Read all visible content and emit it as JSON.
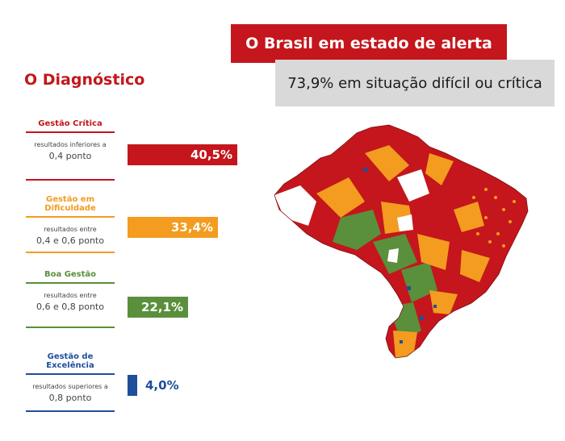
{
  "header": {
    "title": "O Brasil em estado de alerta",
    "subtitle": "73,9% em situação difícil ou crítica"
  },
  "diagnostic": {
    "heading": "O Diagnóstico",
    "categories": [
      {
        "name": "Gestão Crítica",
        "desc_small": "resultados inferiores a",
        "desc_big": "0,4 ponto",
        "value_label": "40,5%",
        "value": 40.5,
        "color": "#c4161c"
      },
      {
        "name": "Gestão em Dificuldade",
        "desc_small": "resultados entre",
        "desc_big": "0,4 e 0,6 ponto",
        "value_label": "33,4%",
        "value": 33.4,
        "color": "#f39c1f"
      },
      {
        "name": "Boa Gestão",
        "desc_small": "resultados entre",
        "desc_big": "0,6 e 0,8 ponto",
        "value_label": "22,1%",
        "value": 22.1,
        "color": "#5a8f3c"
      },
      {
        "name": "Gestão de Excelência",
        "desc_small": "resultados superiores a",
        "desc_big": "0,8 ponto",
        "value_label": "4,0%",
        "value": 4.0,
        "color": "#1f4e9c"
      }
    ]
  },
  "map": {
    "colors": {
      "critica": "#c4161c",
      "dificuldade": "#f39c1f",
      "boa": "#5a8f3c",
      "excelencia": "#1f4e9c",
      "sem_dados": "#ffffff"
    }
  }
}
